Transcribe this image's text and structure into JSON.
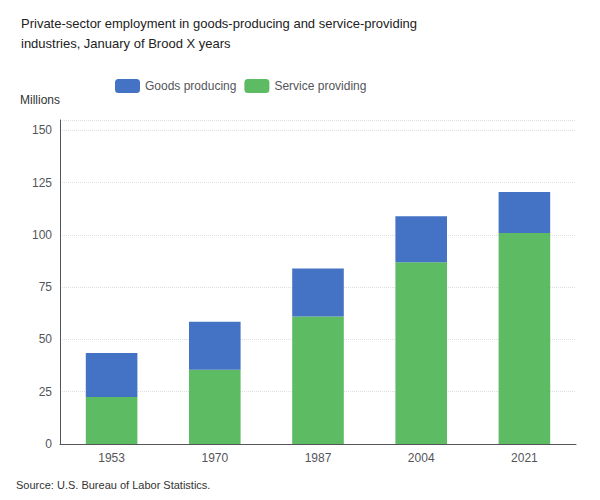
{
  "chart_data": {
    "type": "bar",
    "title": "Private-sector employment in goods-producing and service-providing",
    "subtitle": "industries, January of Brood X years",
    "ylabel": "Millions",
    "annotations": [
      "Source: U.S. Bureau of Labor Statistics."
    ],
    "categories": [
      "1953",
      "1970",
      "1987",
      "2004",
      "2021"
    ],
    "series": [
      {
        "name": "Service providing",
        "color": "#5DBB63",
        "values": [
          22.5,
          35.5,
          61.0,
          87.0,
          101.0
        ]
      },
      {
        "name": "Goods producing",
        "color": "#4472C4",
        "values": [
          21.0,
          23.0,
          23.0,
          22.0,
          19.5
        ]
      }
    ],
    "stacked": true,
    "ylim": [
      0,
      155
    ],
    "yticks": [
      0,
      25,
      50,
      75,
      100,
      125,
      150
    ],
    "grid": true,
    "legend": "upper left"
  }
}
